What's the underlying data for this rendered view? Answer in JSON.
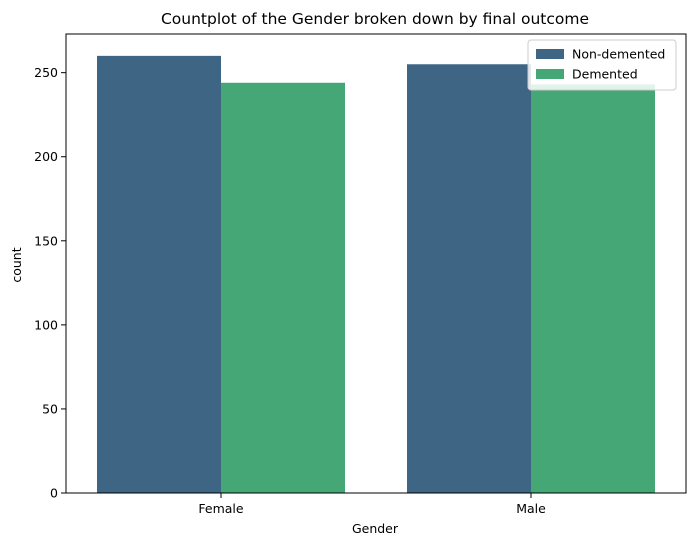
{
  "chart_data": {
    "type": "bar",
    "title": "Countplot of the Gender broken down by final outcome",
    "xlabel": "Gender",
    "ylabel": "count",
    "categories": [
      "Female",
      "Male"
    ],
    "series": [
      {
        "name": "Non-demented",
        "values": [
          260,
          255
        ],
        "color": "#3e6584"
      },
      {
        "name": "Demented",
        "values": [
          244,
          243
        ],
        "color": "#45a776"
      }
    ],
    "ylim": [
      0,
      273
    ],
    "yticks": [
      0,
      50,
      100,
      150,
      200,
      250
    ],
    "grid": false,
    "legend_position": "top-right"
  }
}
